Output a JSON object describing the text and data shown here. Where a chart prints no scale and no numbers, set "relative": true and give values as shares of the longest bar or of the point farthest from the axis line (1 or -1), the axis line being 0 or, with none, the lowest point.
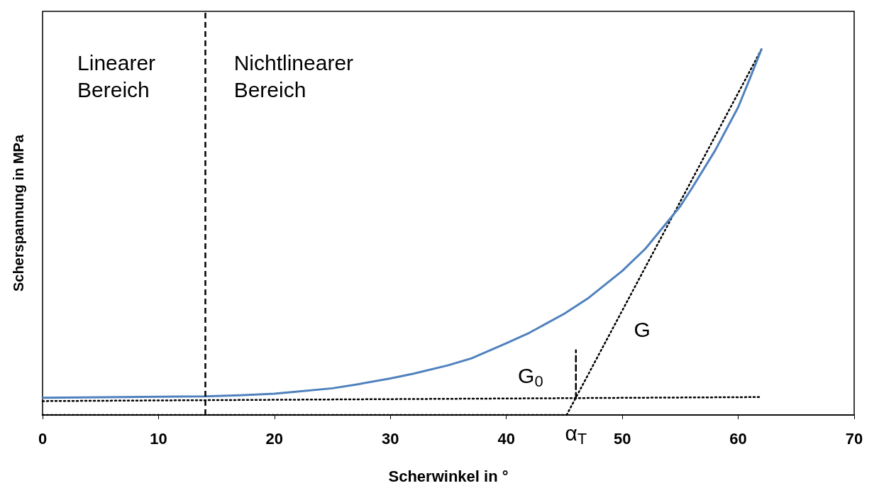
{
  "chart_data": {
    "type": "line",
    "relative": true,
    "xlabel": "Scherwinkel in °",
    "ylabel": "Scherspannung in MPa",
    "xlim": [
      0,
      70
    ],
    "xticks": [
      0,
      10,
      20,
      30,
      40,
      50,
      60,
      70
    ],
    "grid": false,
    "marker": "none",
    "series": [
      {
        "color": "#4f81bd",
        "line_style": "solid",
        "x": [
          0,
          14,
          17,
          20,
          22,
          25,
          27,
          30,
          32,
          35,
          37,
          40,
          42,
          45,
          47,
          50,
          52,
          55,
          56,
          58,
          60,
          61,
          62
        ],
        "values": [
          0.047,
          0.051,
          0.054,
          0.058,
          0.064,
          0.073,
          0.083,
          0.1,
          0.113,
          0.136,
          0.155,
          0.196,
          0.225,
          0.277,
          0.318,
          0.394,
          0.455,
          0.571,
          0.62,
          0.723,
          0.842,
          0.92,
          1.0
        ]
      },
      {
        "color": "#000000",
        "line_style": "dotted",
        "x": [
          45.2,
          62
        ],
        "values": [
          0,
          1.0
        ]
      },
      {
        "color": "#000000",
        "line_style": "dotted",
        "x": [
          0,
          62
        ],
        "values": [
          0.038,
          0.049
        ]
      },
      {
        "color": "#000000",
        "line_style": "dotted",
        "x": [
          0,
          45.2
        ],
        "values": [
          0,
          0
        ]
      },
      {
        "color": "#000000",
        "line_style": "dashed",
        "x": [
          46,
          46
        ],
        "values": [
          0.045,
          0.177
        ]
      }
    ],
    "ref_lines": [
      {
        "axis": "x",
        "value": 14,
        "line_style": "dashed",
        "color": "#000000"
      }
    ],
    "annotations": [
      "Linearer\nBereich",
      "Nichtlinearer\nBereich",
      "G$_{0}$",
      "G",
      "α$_{T}$"
    ]
  }
}
